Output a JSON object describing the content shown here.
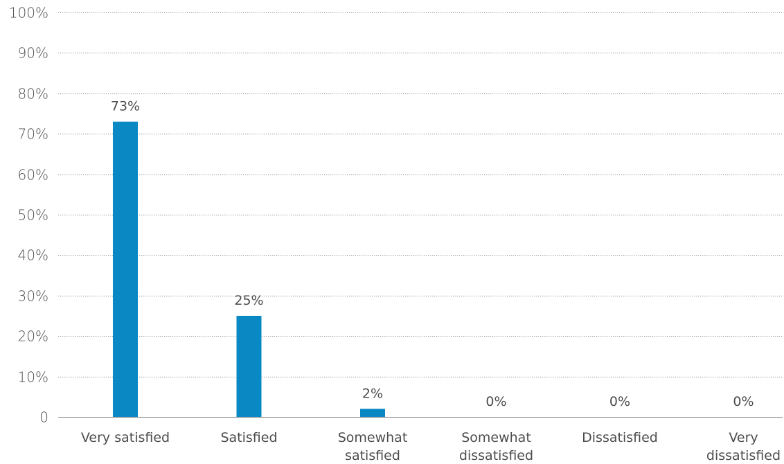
{
  "chart_data": {
    "type": "bar",
    "title": "",
    "xlabel": "",
    "ylabel": "",
    "categories": [
      "Very satisfied",
      "Satisfied",
      "Somewhat satisfied",
      "Somewhat dissatisfied",
      "Dissatisfied",
      "Very dissatisfied"
    ],
    "category_lines": [
      [
        "Very satisfied"
      ],
      [
        "Satisfied"
      ],
      [
        "Somewhat",
        "satisfied"
      ],
      [
        "Somewhat",
        "dissatisfied"
      ],
      [
        "Dissatisfied"
      ],
      [
        "Very",
        "dissatisfied"
      ]
    ],
    "values": [
      73,
      25,
      2,
      0,
      0,
      0
    ],
    "value_labels": [
      "73%",
      "25%",
      "2%",
      "0%",
      "0%",
      "0%"
    ],
    "ylim": [
      0,
      100
    ],
    "yticks": [
      0,
      10,
      20,
      30,
      40,
      50,
      60,
      70,
      80,
      90,
      100
    ],
    "ytick_labels": [
      "0",
      "10%",
      "20%",
      "30%",
      "40%",
      "50%",
      "60%",
      "70%",
      "80%",
      "90%",
      "100%"
    ],
    "grid": true,
    "bar_color": "#0a88c4",
    "legend": "none"
  }
}
